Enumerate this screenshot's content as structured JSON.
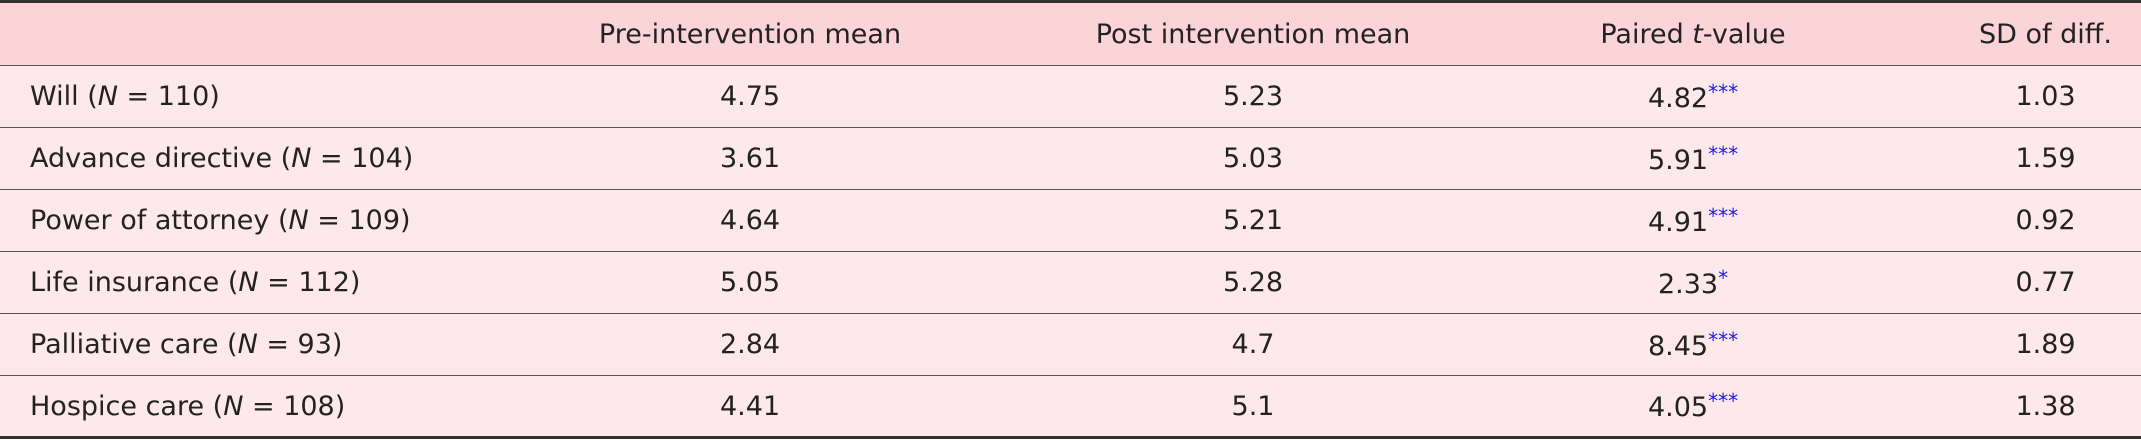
{
  "table": {
    "columns": [
      "Pre-intervention mean",
      "Post intervention mean",
      "Paired t-value",
      "SD of diff."
    ],
    "rows": [
      {
        "label": "Will (N = 110)",
        "pre": "4.75",
        "post": "5.23",
        "t": "4.82",
        "sig": "***",
        "sd": "1.03"
      },
      {
        "label": "Advance directive (N = 104)",
        "pre": "3.61",
        "post": "5.03",
        "t": "5.91",
        "sig": "***",
        "sd": "1.59"
      },
      {
        "label": "Power of attorney (N = 109)",
        "pre": "4.64",
        "post": "5.21",
        "t": "4.91",
        "sig": "***",
        "sd": "0.92"
      },
      {
        "label": "Life insurance (N = 112)",
        "pre": "5.05",
        "post": "5.28",
        "t": "2.33",
        "sig": "*",
        "sd": "0.77"
      },
      {
        "label": "Palliative care (N = 93)",
        "pre": "2.84",
        "post": "4.7",
        "t": "8.45",
        "sig": "***",
        "sd": "1.89"
      },
      {
        "label": "Hospice care (N = 108)",
        "pre": "4.41",
        "post": "5.1",
        "t": "4.05",
        "sig": "***",
        "sd": "1.38"
      }
    ]
  }
}
